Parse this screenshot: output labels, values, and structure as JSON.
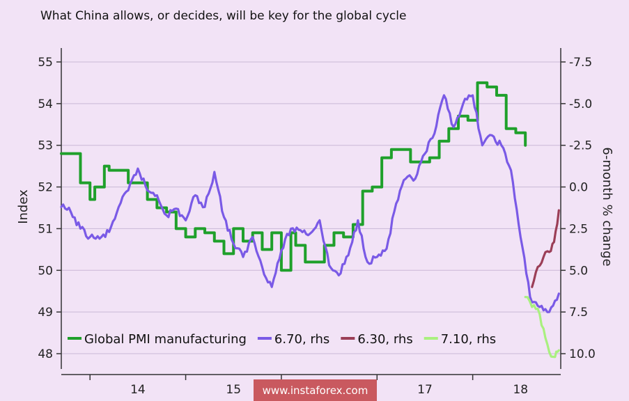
{
  "title": "What China allows, or decides, will be key for the global cycle",
  "watermark": "www.instaforex.com",
  "chart_data": {
    "type": "line",
    "title": "What China allows, or decides, will be key for the global cycle",
    "xlabel": "",
    "ylabel_left": "Index",
    "ylabel_right": "6-month % change",
    "xlim": [
      2013.7,
      2018.92
    ],
    "ylim_left": [
      47.8,
      55.2
    ],
    "ylim_right_ticks": [
      "-7.5",
      "-5.0",
      "-2.5",
      "0.0",
      "2.5",
      "5.0",
      "7.5",
      "10.0"
    ],
    "ylim_right": [
      -7.5,
      10.0
    ],
    "right_axis_inverted": true,
    "x_ticks": [
      {
        "value": 2014.5,
        "label": "14"
      },
      {
        "value": 2015.5,
        "label": "15"
      },
      {
        "value": 2016.5,
        "label": "16"
      },
      {
        "value": 2017.5,
        "label": "17"
      },
      {
        "value": 2018.5,
        "label": "18"
      }
    ],
    "y_ticks_left": [
      55,
      54,
      53,
      52,
      51,
      50,
      49,
      48
    ],
    "y_ticks_right": [
      -7.5,
      -5.0,
      -2.5,
      0.0,
      2.5,
      5.0,
      7.5,
      10.0
    ],
    "grid": "horizontal",
    "legend": "bottom",
    "series": [
      {
        "name": "Global PMI manufacturing",
        "axis": "left",
        "color": "#1fa02b",
        "x": [
          2013.7,
          2013.85,
          2013.9,
          2014.0,
          2014.05,
          2014.15,
          2014.2,
          2014.3,
          2014.4,
          2014.5,
          2014.6,
          2014.7,
          2014.8,
          2014.9,
          2015.0,
          2015.1,
          2015.2,
          2015.3,
          2015.4,
          2015.5,
          2015.6,
          2015.7,
          2015.8,
          2015.9,
          2016.0,
          2016.1,
          2016.15,
          2016.25,
          2016.35,
          2016.45,
          2016.55,
          2016.65,
          2016.75,
          2016.85,
          2016.95,
          2017.05,
          2017.15,
          2017.25,
          2017.35,
          2017.45,
          2017.55,
          2017.65,
          2017.75,
          2017.85,
          2017.95,
          2018.05,
          2018.15,
          2018.25,
          2018.35,
          2018.45,
          2018.55
        ],
        "values": [
          52.8,
          52.8,
          52.1,
          51.7,
          52.0,
          52.5,
          52.4,
          52.4,
          52.1,
          52.1,
          51.7,
          51.5,
          51.4,
          51.0,
          50.8,
          51.0,
          50.9,
          50.7,
          50.4,
          51.0,
          50.7,
          50.9,
          50.5,
          50.9,
          50.0,
          50.9,
          50.6,
          50.2,
          50.2,
          50.6,
          50.9,
          50.8,
          51.1,
          51.9,
          52.0,
          52.7,
          52.9,
          52.9,
          52.6,
          52.6,
          52.7,
          53.1,
          53.4,
          53.7,
          53.6,
          54.5,
          54.4,
          54.2,
          53.4,
          53.3,
          53.0
        ]
      },
      {
        "name": "6.70, rhs",
        "axis": "right",
        "color": "#7a5ae6",
        "x": [
          2013.7,
          2013.8,
          2013.9,
          2014.0,
          2014.1,
          2014.2,
          2014.3,
          2014.4,
          2014.5,
          2014.6,
          2014.7,
          2014.8,
          2014.9,
          2015.0,
          2015.1,
          2015.2,
          2015.3,
          2015.4,
          2015.5,
          2015.6,
          2015.7,
          2015.8,
          2015.9,
          2016.0,
          2016.1,
          2016.2,
          2016.3,
          2016.4,
          2016.5,
          2016.6,
          2016.7,
          2016.8,
          2016.9,
          2017.0,
          2017.1,
          2017.2,
          2017.3,
          2017.4,
          2017.5,
          2017.6,
          2017.7,
          2017.8,
          2017.9,
          2018.0,
          2018.1,
          2018.2,
          2018.3,
          2018.4,
          2018.5,
          2018.6,
          2018.7,
          2018.8,
          2018.9
        ],
        "values": [
          1.2,
          1.5,
          2.5,
          3.0,
          3.1,
          2.7,
          1.2,
          0.2,
          -1.1,
          0.2,
          0.5,
          1.7,
          1.3,
          2.0,
          0.5,
          1.2,
          -0.9,
          1.8,
          3.4,
          4.2,
          3.0,
          4.8,
          6.0,
          3.8,
          2.5,
          2.6,
          2.8,
          2.0,
          4.7,
          5.3,
          4.1,
          2.0,
          4.5,
          4.2,
          3.7,
          1.0,
          -0.5,
          -0.5,
          -2.0,
          -3.2,
          -5.5,
          -3.6,
          -5.0,
          -5.5,
          -2.5,
          -3.1,
          -2.5,
          -1.0,
          3.0,
          6.6,
          7.2,
          7.5,
          6.4
        ]
      },
      {
        "name": "6.30, rhs",
        "axis": "right",
        "color": "#9b3e57",
        "x": [
          2018.62,
          2018.68,
          2018.74,
          2018.8,
          2018.85,
          2018.9
        ],
        "values": [
          6.0,
          4.8,
          4.2,
          3.9,
          3.3,
          1.4
        ]
      },
      {
        "name": "7.10, rhs",
        "axis": "right",
        "color": "#a9f07f",
        "x": [
          2018.55,
          2018.62,
          2018.68,
          2018.74,
          2018.8,
          2018.86,
          2018.9
        ],
        "values": [
          6.6,
          7.2,
          7.3,
          8.5,
          9.9,
          10.2,
          9.8
        ]
      }
    ]
  }
}
